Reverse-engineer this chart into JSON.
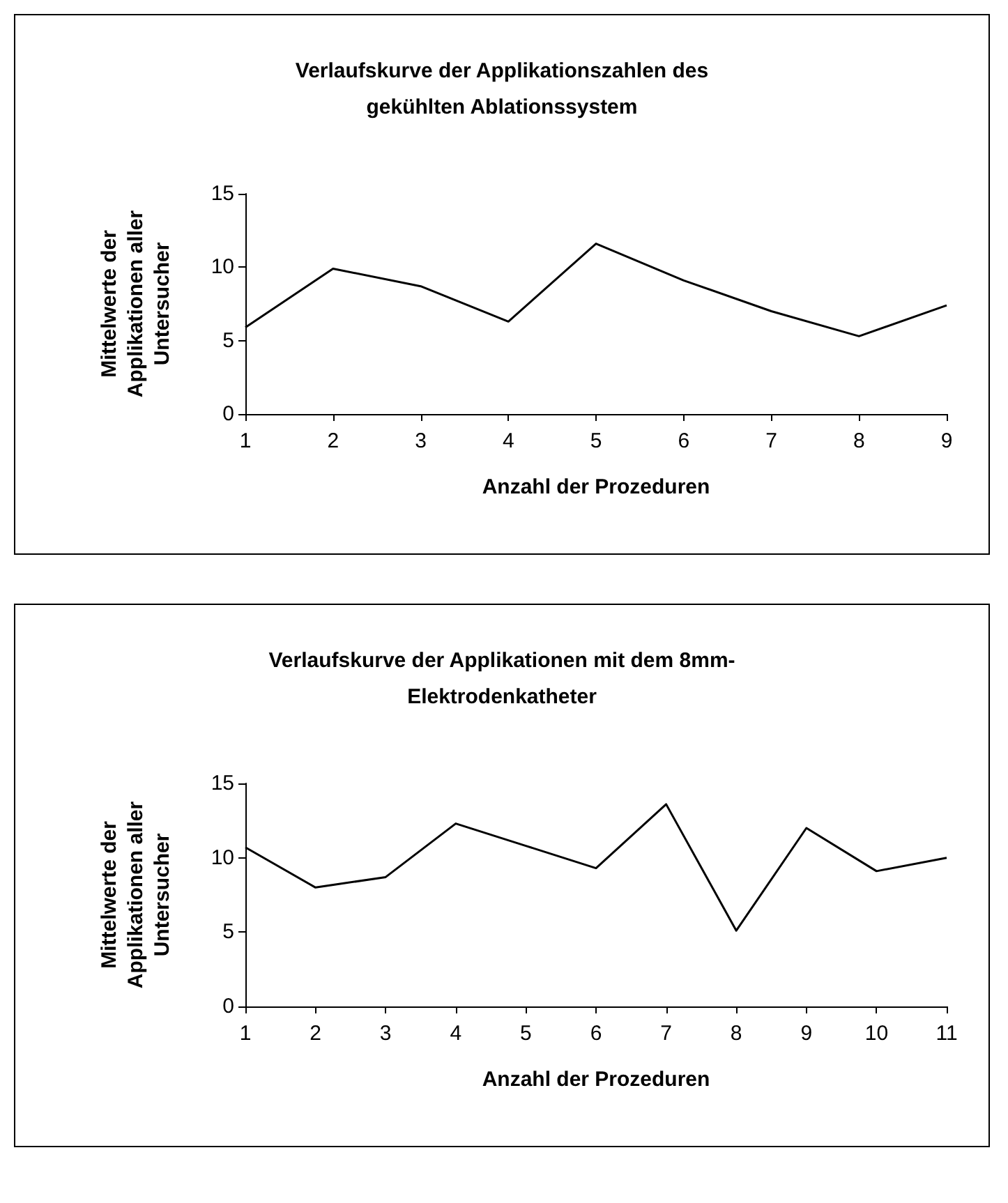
{
  "chart_data": [
    {
      "type": "line",
      "title": "Verlaufskurve der Applikationszahlen des\ngekühlten Ablationssystem",
      "xlabel": "Anzahl der Prozeduren",
      "ylabel": "Mittelwerte der\nApplikationen aller\nUntersucher",
      "categories": [
        "1",
        "2",
        "3",
        "4",
        "5",
        "6",
        "7",
        "8",
        "9"
      ],
      "values": [
        5.9,
        9.9,
        8.7,
        6.3,
        11.6,
        9.1,
        7.0,
        5.3,
        7.4
      ],
      "color": "#000000",
      "ylim": [
        0,
        15
      ],
      "yticks": [
        0,
        5,
        10,
        15
      ],
      "grid": false,
      "marker": "none",
      "line_style": "solid"
    },
    {
      "type": "line",
      "title": "Verlaufskurve der Applikationen mit dem 8mm-\nElektrodenkatheter",
      "xlabel": "Anzahl der Prozeduren",
      "ylabel": "Mittelwerte der\nApplikationen aller\nUntersucher",
      "categories": [
        "1",
        "2",
        "3",
        "4",
        "5",
        "6",
        "7",
        "8",
        "9",
        "10",
        "11"
      ],
      "values": [
        10.7,
        8.0,
        8.7,
        12.3,
        10.8,
        9.3,
        13.6,
        5.1,
        12.0,
        9.1,
        10.0
      ],
      "color": "#000000",
      "ylim": [
        0,
        15
      ],
      "yticks": [
        0,
        5,
        10,
        15
      ],
      "grid": false,
      "marker": "none",
      "line_style": "solid"
    }
  ]
}
